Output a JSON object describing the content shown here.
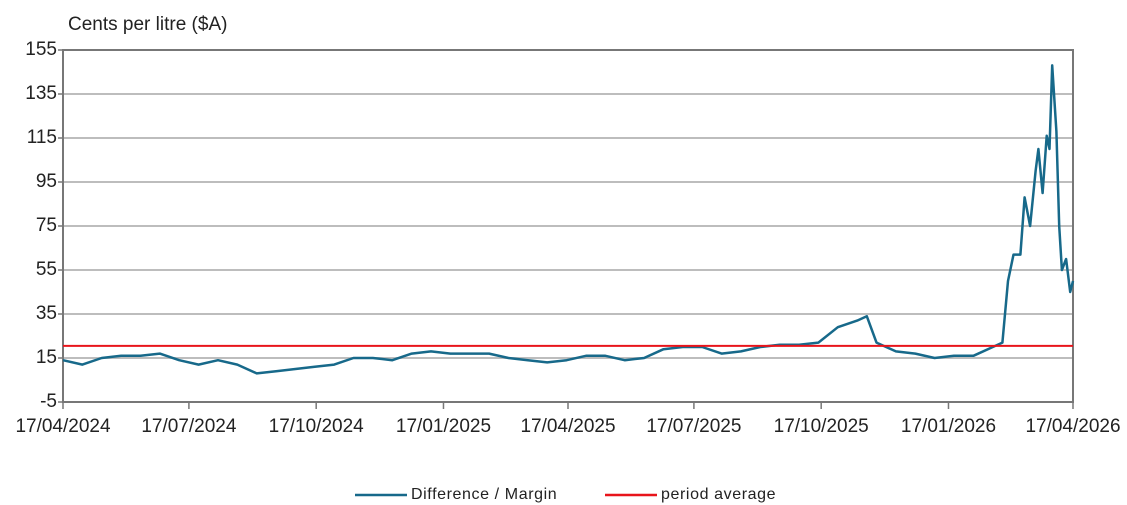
{
  "chart_data": {
    "type": "line",
    "y_label": "Cents per litre ($A)",
    "xlim": [
      "2024-04-17",
      "2026-04-17"
    ],
    "xticks": [
      {
        "value": "2024-04-17",
        "label": "17/04/2024"
      },
      {
        "value": "2024-07-17",
        "label": "17/07/2024"
      },
      {
        "value": "2024-10-17",
        "label": "17/10/2024"
      },
      {
        "value": "2025-01-17",
        "label": "17/01/2025"
      },
      {
        "value": "2025-04-17",
        "label": "17/04/2025"
      },
      {
        "value": "2025-07-17",
        "label": "17/07/2025"
      },
      {
        "value": "2025-10-17",
        "label": "17/10/2025"
      },
      {
        "value": "2026-01-17",
        "label": "17/01/2026"
      },
      {
        "value": "2026-04-17",
        "label": "17/04/2026"
      }
    ],
    "ylim": [
      -5,
      155
    ],
    "yticks": [
      -5,
      15,
      35,
      55,
      75,
      95,
      115,
      135,
      155
    ],
    "grid": true,
    "series": [
      {
        "name": "Difference / Margin",
        "color": "#17698a",
        "x": [
          "2024-04-17",
          "2024-05-01",
          "2024-05-15",
          "2024-05-29",
          "2024-06-12",
          "2024-06-26",
          "2024-07-10",
          "2024-07-24",
          "2024-08-07",
          "2024-08-21",
          "2024-09-04",
          "2024-09-18",
          "2024-10-02",
          "2024-10-16",
          "2024-10-30",
          "2024-11-13",
          "2024-11-27",
          "2024-12-11",
          "2024-12-25",
          "2025-01-08",
          "2025-01-22",
          "2025-02-05",
          "2025-02-19",
          "2025-03-05",
          "2025-03-19",
          "2025-04-02",
          "2025-04-16",
          "2025-04-30",
          "2025-05-14",
          "2025-05-28",
          "2025-06-11",
          "2025-06-25",
          "2025-07-09",
          "2025-07-23",
          "2025-08-06",
          "2025-08-20",
          "2025-09-03",
          "2025-09-17",
          "2025-10-01",
          "2025-10-15",
          "2025-10-29",
          "2025-11-12",
          "2025-11-19",
          "2025-11-26",
          "2025-12-10",
          "2025-12-24",
          "2026-01-07",
          "2026-01-21",
          "2026-02-04",
          "2026-02-18",
          "2026-02-25",
          "2026-03-01",
          "2026-03-05",
          "2026-03-07",
          "2026-03-10",
          "2026-03-13",
          "2026-03-17",
          "2026-03-21",
          "2026-03-23",
          "2026-03-26",
          "2026-03-29",
          "2026-03-31",
          "2026-04-02",
          "2026-04-05",
          "2026-04-07",
          "2026-04-09",
          "2026-04-12",
          "2026-04-15",
          "2026-04-17"
        ],
        "values": [
          14,
          12,
          15,
          16,
          16,
          17,
          14,
          12,
          14,
          12,
          8,
          9,
          10,
          11,
          12,
          15,
          15,
          14,
          17,
          18,
          17,
          17,
          17,
          15,
          14,
          13,
          14,
          16,
          16,
          14,
          15,
          19,
          20,
          20,
          17,
          18,
          20,
          21,
          21,
          22,
          29,
          32,
          34,
          22,
          18,
          17,
          15,
          16,
          16,
          20,
          22,
          50,
          62,
          62,
          62,
          88,
          75,
          100,
          110,
          90,
          116,
          110,
          148,
          118,
          75,
          55,
          60,
          45,
          50
        ]
      },
      {
        "name": "period average",
        "color": "#e8141b",
        "x": [
          "2024-04-17",
          "2026-04-17"
        ],
        "values": [
          20.5,
          20.5
        ]
      }
    ],
    "legend": "bottom"
  }
}
